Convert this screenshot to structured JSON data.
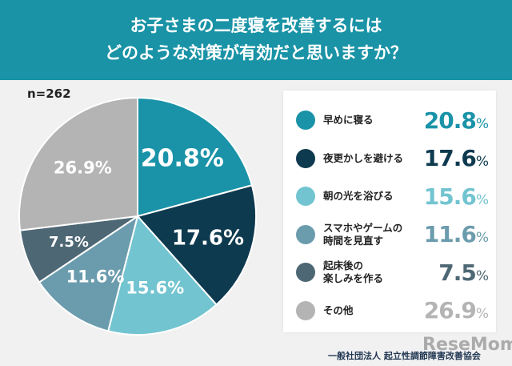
{
  "header": {
    "title_line1": "お子さまの二度寝を改善するには",
    "title_line2": "どのような対策が有効だと思いますか？"
  },
  "sample": "n=262",
  "chart_data": {
    "type": "pie",
    "title": "お子さまの二度寝を改善するには どのような対策が有効だと思いますか？",
    "unit": "%",
    "slices": [
      {
        "label": "早めに寝る",
        "value": 20.8,
        "color": "#1a93a8"
      },
      {
        "label": "夜更かしを避ける",
        "value": 17.6,
        "color": "#0e3a4f"
      },
      {
        "label": "朝の光を浴びる",
        "value": 15.6,
        "color": "#72c4d0"
      },
      {
        "label": "スマホやゲームの\n時間を見直す",
        "value": 11.6,
        "color": "#6b9cad"
      },
      {
        "label": "起床後の\n楽しみを作る",
        "value": 7.5,
        "color": "#4e6774"
      },
      {
        "label": "その他",
        "value": 26.9,
        "color": "#b4b4b4"
      }
    ],
    "start": "top",
    "direction": "clockwise",
    "legend_position": "right"
  },
  "footer": {
    "org": "一般社団法人 起立性調節障害改善協会",
    "watermark": "ReseMom"
  }
}
